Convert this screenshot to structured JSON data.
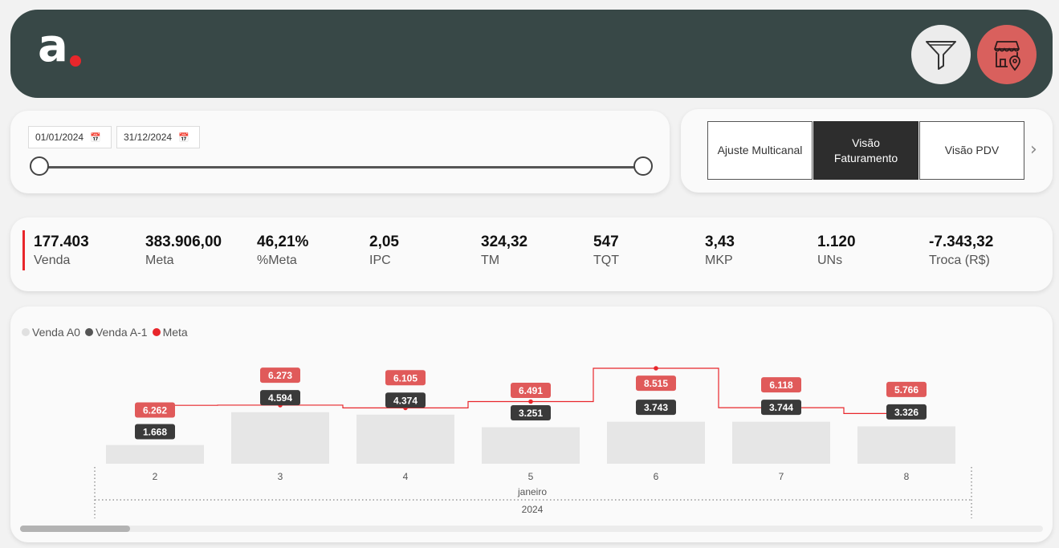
{
  "header": {
    "logo_letter": "a",
    "icons": {
      "filter": "filter-icon",
      "store": "store-location-icon"
    },
    "colors": {
      "background": "#384847",
      "logo_dot": "#e8262b",
      "store_button": "#d9605d"
    }
  },
  "date_filter": {
    "start": "01/01/2024",
    "end": "31/12/2024",
    "icon": "calendar-icon"
  },
  "nav": {
    "buttons": [
      {
        "label": "Ajuste Multicanal",
        "active": false
      },
      {
        "label": "Visão Faturamento",
        "active": true
      },
      {
        "label": "Visão PDV",
        "active": false
      }
    ],
    "next_icon": "chevron-right-icon"
  },
  "kpis": [
    {
      "value": "177.403",
      "label": "Venda"
    },
    {
      "value": "383.906,00",
      "label": "Meta"
    },
    {
      "value": "46,21%",
      "label": "%Meta"
    },
    {
      "value": "2,05",
      "label": "IPC"
    },
    {
      "value": "324,32",
      "label": "TM"
    },
    {
      "value": "547",
      "label": "TQT"
    },
    {
      "value": "3,43",
      "label": "MKP"
    },
    {
      "value": "1.120",
      "label": "UNs"
    },
    {
      "value": "-7.343,32",
      "label": "Troca (R$)"
    }
  ],
  "legend": [
    {
      "label": "Venda A0",
      "color": "#e0e0e0"
    },
    {
      "label": "Venda A-1",
      "color": "#555555"
    },
    {
      "label": "Meta",
      "color": "#e8262b"
    }
  ],
  "chart_data": {
    "type": "bar",
    "categories": [
      "2",
      "3",
      "4",
      "5",
      "6",
      "7",
      "8"
    ],
    "month_label": "janeiro",
    "year_label": "2024",
    "series": [
      {
        "name": "Venda A0",
        "values": [
          1668,
          4594,
          4374,
          3251,
          3743,
          3744,
          3326
        ],
        "labels": [
          "1.668",
          "4.594",
          "4.374",
          "3.251",
          "3.743",
          "3.744",
          "3.326"
        ],
        "color": "#e6e6e6"
      },
      {
        "name": "Meta",
        "values": [
          6262,
          6273,
          6105,
          6491,
          8515,
          6118,
          5766
        ],
        "labels": [
          "6.262",
          "6.273",
          "6.105",
          "6.491",
          "8.515",
          "6.118",
          "5.766"
        ],
        "color": "#e8262b"
      }
    ]
  }
}
